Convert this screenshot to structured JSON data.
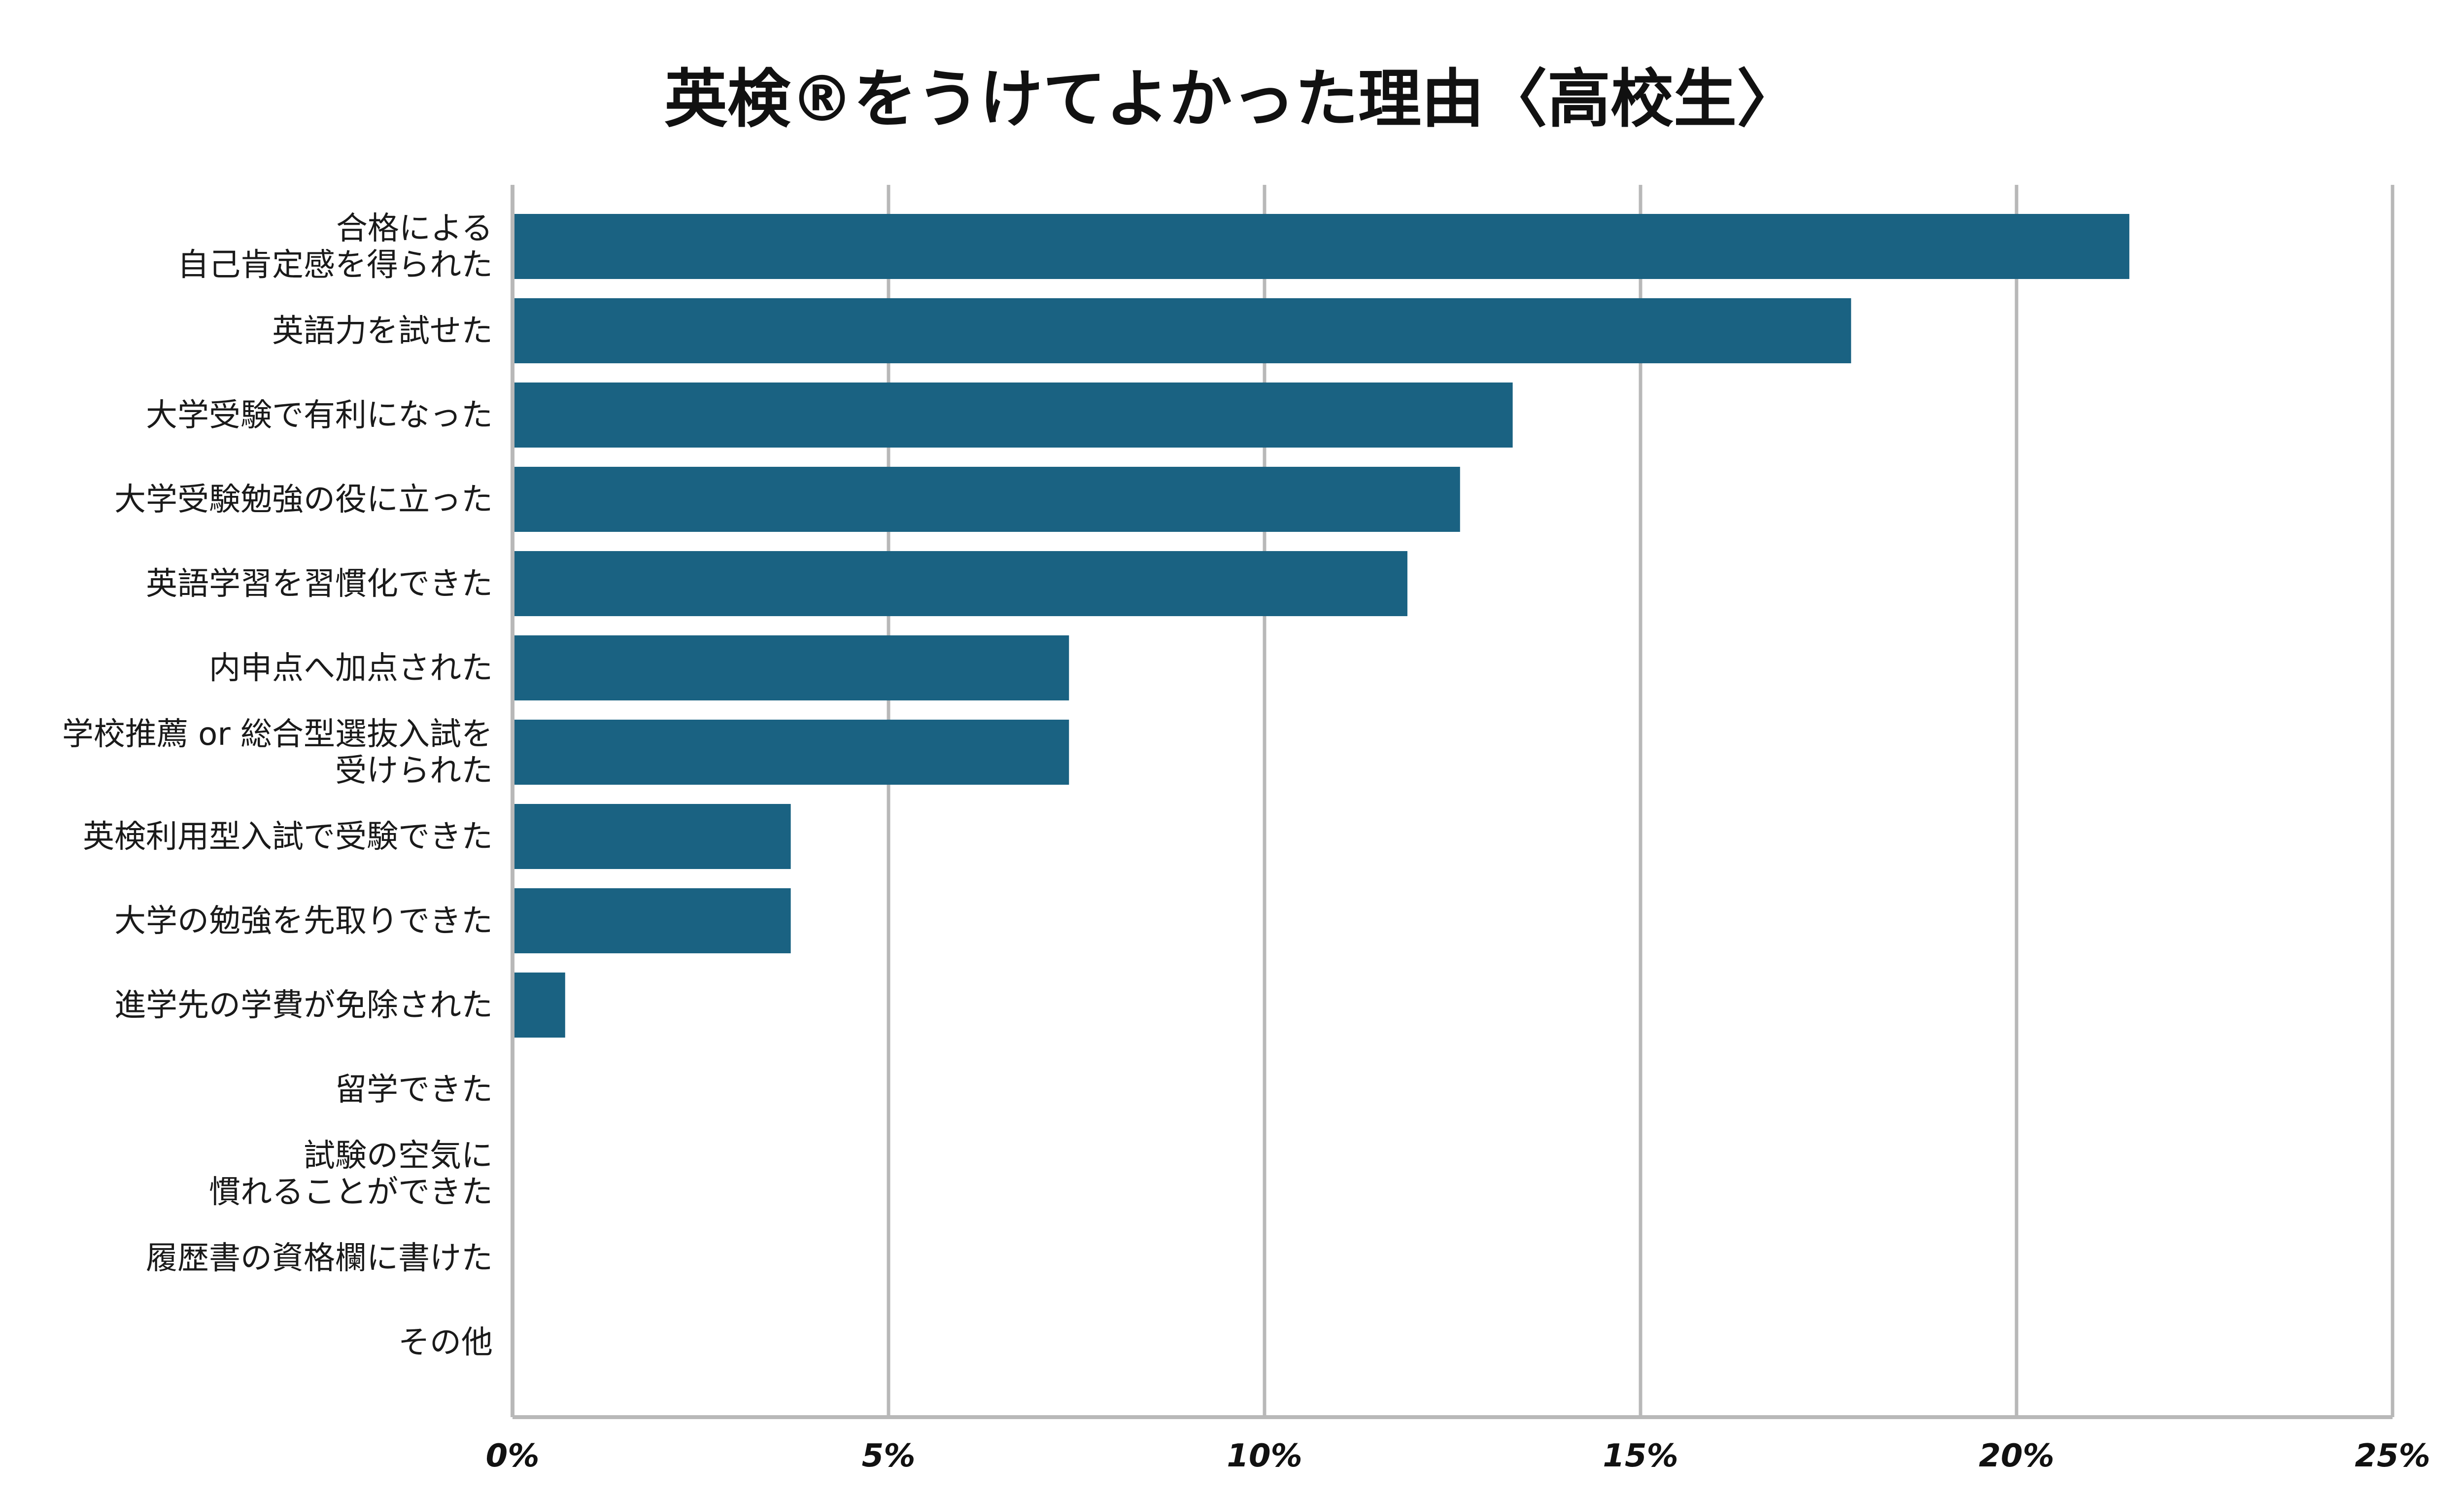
{
  "chart_data": {
    "type": "bar",
    "orientation": "horizontal",
    "title": "英検®をうけてよかった理由〈高校生〉",
    "xlabel": "",
    "ylabel": "",
    "categories": [
      [
        "合格による",
        "自己肯定感を得られた"
      ],
      [
        "英語力を試せた"
      ],
      [
        "大学受験で有利になった"
      ],
      [
        "大学受験勉強の役に立った"
      ],
      [
        "英語学習を習慣化できた"
      ],
      [
        "内申点へ加点された"
      ],
      [
        "学校推薦 or 総合型選抜入試を",
        "受けられた"
      ],
      [
        "英検利用型入試で受験できた"
      ],
      [
        "大学の勉強を先取りできた"
      ],
      [
        "進学先の学費が免除された"
      ],
      [
        "留学できた"
      ],
      [
        "試験の空気に",
        "慣れることができた"
      ],
      [
        "履歴書の資格欄に書けた"
      ],
      [
        "その他"
      ]
    ],
    "values": [
      21.5,
      17.8,
      13.3,
      12.6,
      11.9,
      7.4,
      7.4,
      3.7,
      3.7,
      0.7,
      0,
      0,
      0,
      0
    ],
    "xlim": [
      0,
      25
    ],
    "xticks": [
      0,
      5,
      10,
      15,
      20,
      25
    ],
    "tick_labels": [
      "0%",
      "5%",
      "10%",
      "15%",
      "20%",
      "25%"
    ],
    "grid": true,
    "legend": "none",
    "colors": {
      "bar": "#1a6282",
      "grid": "#b8b8b8",
      "text": "#111111"
    }
  }
}
